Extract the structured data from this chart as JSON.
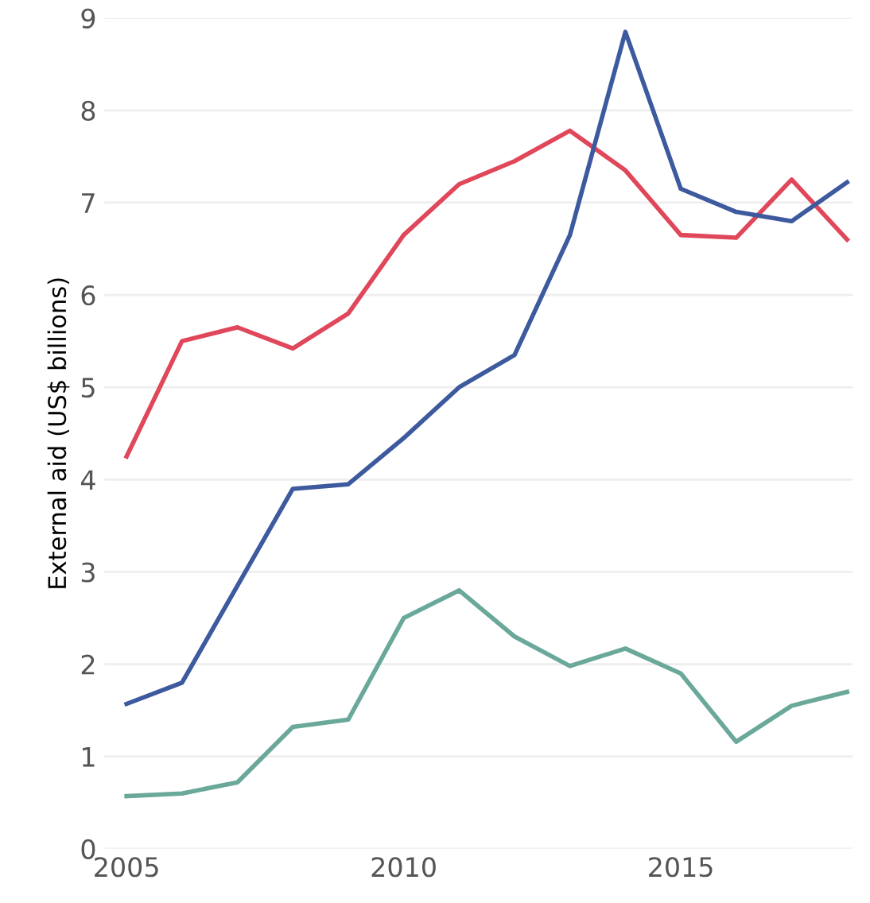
{
  "chart_data": {
    "type": "line",
    "ylabel": "External aid (US$ billions)",
    "x": [
      2005,
      2006,
      2007,
      2008,
      2009,
      2010,
      2011,
      2012,
      2013,
      2014,
      2015,
      2016,
      2017,
      2018
    ],
    "series": [
      {
        "color": "#e0475a",
        "values": [
          4.25,
          5.5,
          5.65,
          5.42,
          5.8,
          6.65,
          7.2,
          7.45,
          7.78,
          7.35,
          6.65,
          6.62,
          7.25,
          6.6
        ]
      },
      {
        "color": "#3d5a9e",
        "values": [
          1.57,
          1.8,
          2.85,
          3.9,
          3.95,
          4.45,
          5.0,
          5.35,
          6.65,
          8.85,
          7.15,
          6.9,
          6.8,
          7.22
        ]
      },
      {
        "color": "#6aa89a",
        "values": [
          0.57,
          0.6,
          0.72,
          1.32,
          1.4,
          2.5,
          2.8,
          2.3,
          1.98,
          2.17,
          1.9,
          1.16,
          1.55,
          1.7
        ]
      }
    ],
    "xlim": [
      2004.6,
      2018.1
    ],
    "xticks": [
      2005,
      2010,
      2015
    ],
    "ylim": [
      0,
      9
    ],
    "yticks": [
      0,
      1,
      2,
      3,
      4,
      5,
      6,
      7,
      8,
      9
    ],
    "grid": "y",
    "legend": false
  }
}
